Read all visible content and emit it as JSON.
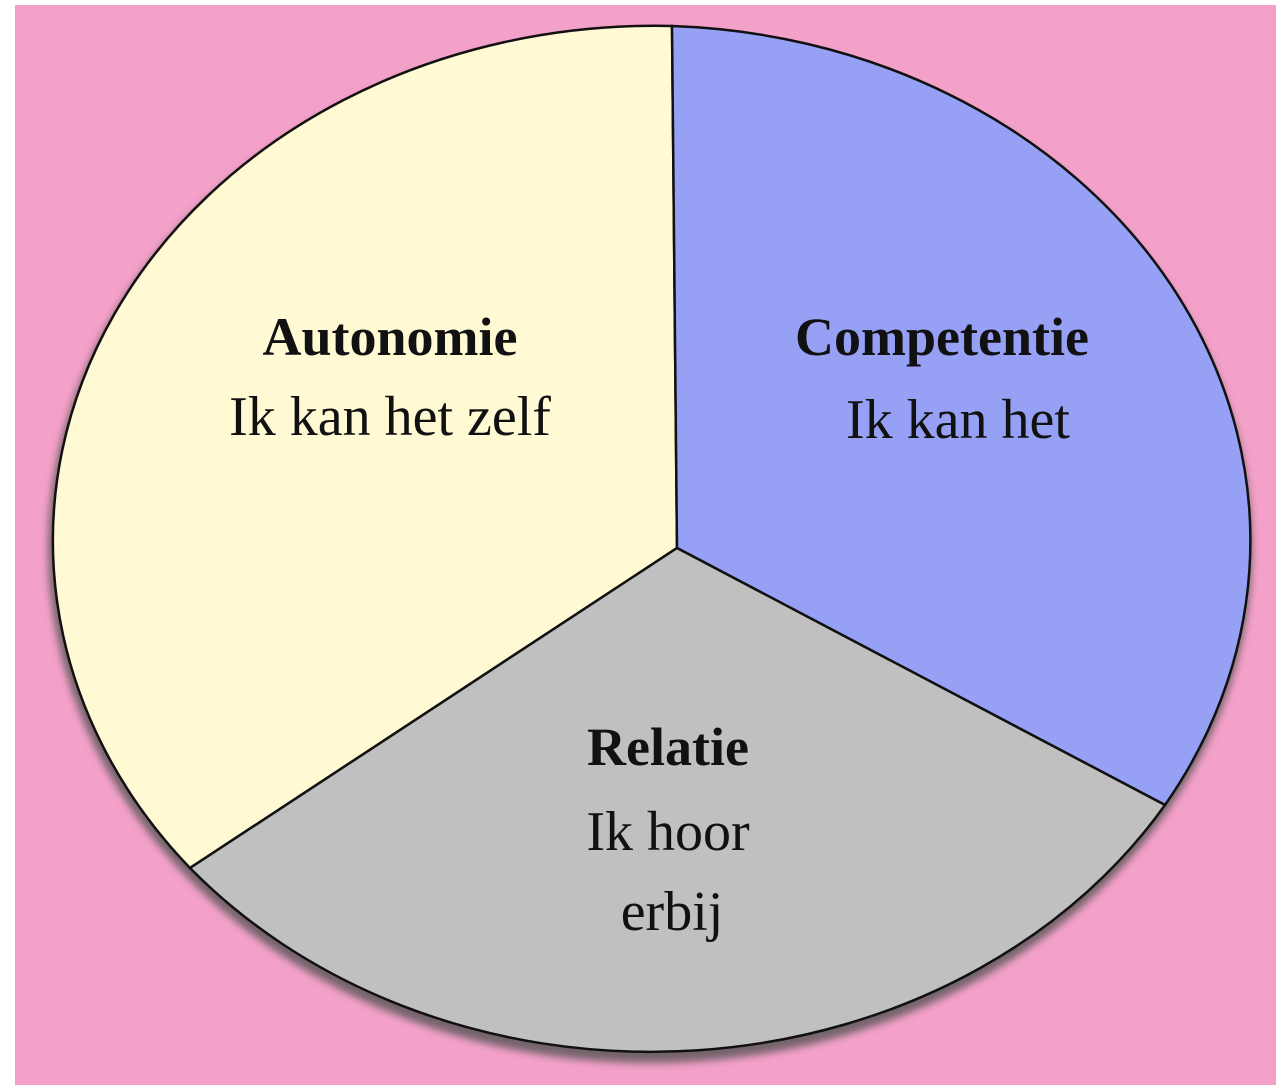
{
  "segments": [
    {
      "title": "Autonomie",
      "lines": [
        "Ik kan het zelf"
      ]
    },
    {
      "title": "Competentie",
      "lines": [
        "Ik kan het"
      ]
    },
    {
      "title": "Relatie",
      "lines": [
        "Ik hoor",
        "erbij"
      ]
    }
  ]
}
